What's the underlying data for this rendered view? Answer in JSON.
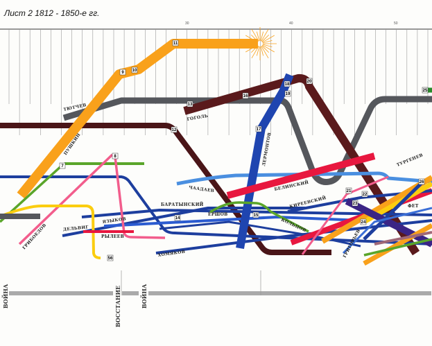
{
  "title": "Лист 2 1812 - 1850-е гг.",
  "axis_ticks": [
    "30",
    "40",
    "50"
  ],
  "events": [
    "ВОЙНА",
    "ВОССТАНИЕ",
    "ВОЙНА"
  ],
  "writers": {
    "tyutchev": "ТЮТЧЕВ",
    "pushkin": "ПУШКИН",
    "gogol": "ГОГОЛЬ",
    "lermontov": "ЛЕРМОНТОВ",
    "chaadaev": "ЧААДАЕВ",
    "belinsky": "БЕЛИНСКИЙ",
    "baratynsky": "БАРАТЫНСКИЙ",
    "yazykov": "ЯЗЫКОВ",
    "delvig": "ДЕЛЬВИГ",
    "ryleev": "РЫЛЕЕВ",
    "griboedov": "ГРИБОЕДОВ",
    "khomyakov": "ХОМЯКОВ",
    "ershov": "ЕРШОВ",
    "koltsov": "КОЛЬЦОВ",
    "kireevsky": "КИРЕЕВСКИЙ",
    "turgenev": "ТУРГЕНЕВ",
    "fet": "ФЕТ",
    "grigoriev": "ГРИГОРЬЕВ"
  },
  "badges": [
    "7",
    "8",
    "9",
    "10",
    "11",
    "12",
    "13",
    "14",
    "15",
    "16",
    "17",
    "18",
    "19",
    "20",
    "21",
    "22",
    "23",
    "24",
    "25",
    "26",
    "56"
  ],
  "colors": {
    "pushkin": "#f9a11b",
    "tyutchev": "#55575c",
    "dark_brown": "#4a1518",
    "gogol": "#5a1a1c",
    "lermontov": "#1f45b0",
    "belinsky": "#e8173f",
    "chaadaev": "#4a8fe0",
    "blue": "#1d3e9e",
    "green": "#5aa52a",
    "pink": "#f25d8c",
    "yellow": "#fbcd0f",
    "red": "#e8173f",
    "purple": "#3b2485",
    "grid": "#999999"
  }
}
